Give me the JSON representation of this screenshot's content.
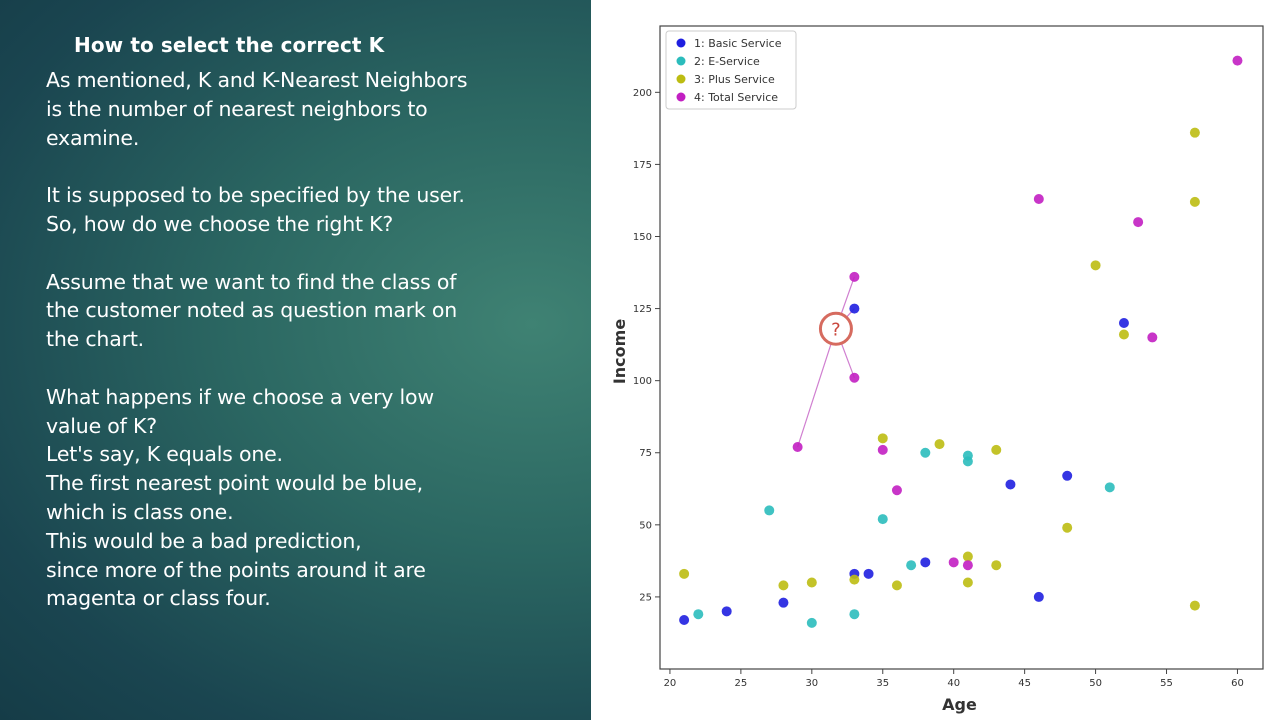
{
  "slide": {
    "heading": "How to select the correct K",
    "paragraphs": [
      "As mentioned, K and K-Nearest Neighbors\nis the number of nearest neighbors to\nexamine.",
      "It is supposed to be specified by the user.\nSo, how do we choose the right K?",
      "Assume that we want to find the class of\nthe customer noted as question mark on\nthe chart.",
      "What happens if we choose a very low\nvalue of K?\nLet's say, K equals one.\nThe first nearest point would be blue,\nwhich is class one.\nThis would be a bad prediction,\nsince more of the points around it are\nmagenta or class four."
    ]
  },
  "colors": {
    "class1": "#1f1fe0",
    "class2": "#2bbcbc",
    "class3": "#bcbc12",
    "class4": "#c21fc2",
    "query_marker": "#d9534f"
  },
  "chart_data": {
    "type": "scatter",
    "title": "",
    "xlabel": "Age",
    "ylabel": "Income",
    "xlim": [
      19.3,
      61.8
    ],
    "ylim": [
      0,
      223
    ],
    "xticks": [
      20,
      25,
      30,
      35,
      40,
      45,
      50,
      55,
      60
    ],
    "yticks": [
      25,
      50,
      75,
      100,
      125,
      150,
      175,
      200
    ],
    "legend_position": "top-left",
    "series": [
      {
        "name": "1: Basic Service",
        "color": "#1f1fe0",
        "points": [
          [
            21,
            17
          ],
          [
            24,
            20
          ],
          [
            28,
            23
          ],
          [
            33,
            33
          ],
          [
            34,
            33
          ],
          [
            38,
            37
          ],
          [
            33,
            125
          ],
          [
            44,
            64
          ],
          [
            48,
            67
          ],
          [
            46,
            25
          ],
          [
            52,
            120
          ]
        ]
      },
      {
        "name": "2: E-Service",
        "color": "#2bbcbc",
        "points": [
          [
            22,
            19
          ],
          [
            27,
            55
          ],
          [
            30,
            16
          ],
          [
            33,
            19
          ],
          [
            35,
            52
          ],
          [
            37,
            36
          ],
          [
            38,
            75
          ],
          [
            41,
            74
          ],
          [
            41,
            72
          ],
          [
            51,
            63
          ]
        ]
      },
      {
        "name": "3: Plus Service",
        "color": "#bcbc12",
        "points": [
          [
            21,
            33
          ],
          [
            28,
            29
          ],
          [
            30,
            30
          ],
          [
            33,
            31
          ],
          [
            35,
            80
          ],
          [
            36,
            29
          ],
          [
            39,
            78
          ],
          [
            41,
            39
          ],
          [
            41,
            30
          ],
          [
            43,
            36
          ],
          [
            43,
            76
          ],
          [
            48,
            49
          ],
          [
            50,
            140
          ],
          [
            52,
            116
          ],
          [
            57,
            186
          ],
          [
            57,
            162
          ],
          [
            57,
            22
          ]
        ]
      },
      {
        "name": "4: Total Service",
        "color": "#c21fc2",
        "points": [
          [
            29,
            77
          ],
          [
            33,
            136
          ],
          [
            33,
            101
          ],
          [
            35,
            76
          ],
          [
            36,
            62
          ],
          [
            40,
            37
          ],
          [
            41,
            36
          ],
          [
            46,
            163
          ],
          [
            53,
            155
          ],
          [
            54,
            115
          ],
          [
            60,
            211
          ]
        ]
      }
    ],
    "query_point": {
      "label": "?",
      "x": 31.7,
      "y": 118
    }
  }
}
